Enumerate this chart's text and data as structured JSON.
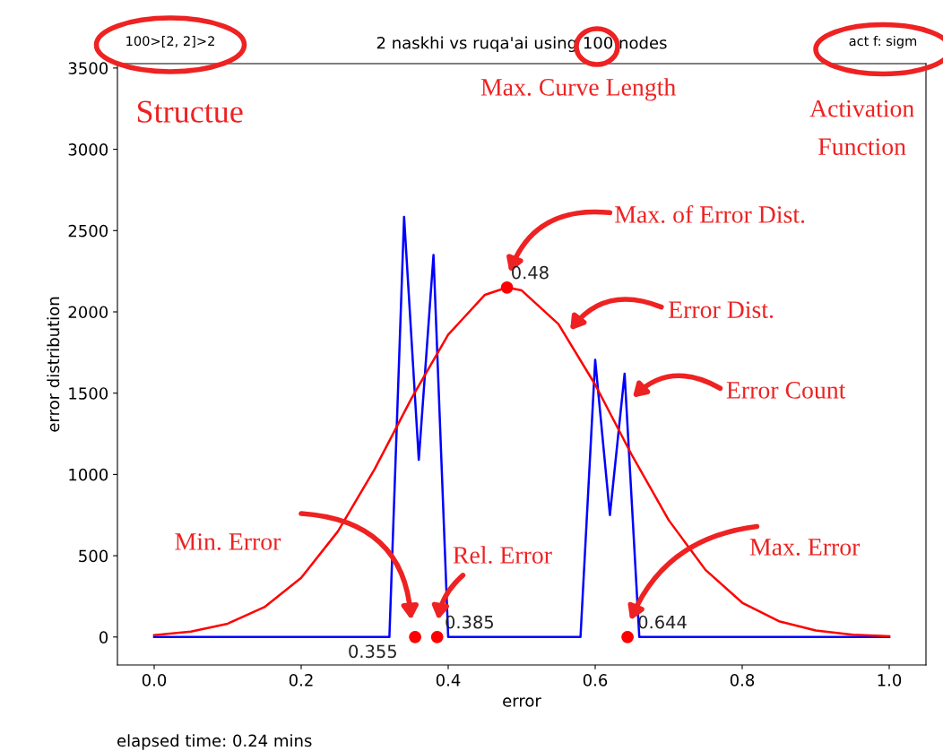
{
  "chart_data": {
    "type": "line",
    "title": "2 naskhi vs ruqa'ai using 100 nodes",
    "xlabel": "error",
    "ylabel": "error distribution",
    "xlim": [
      -0.05,
      1.05
    ],
    "ylim": [
      -172,
      3527
    ],
    "xticks": [
      {
        "value": 0,
        "label": "0.0"
      },
      0.2,
      0.4,
      0.6,
      0.8,
      {
        "value": 1,
        "label": "1.0"
      }
    ],
    "yticks": [
      0,
      500,
      1000,
      1500,
      2000,
      2500,
      3000,
      3500
    ],
    "grid": false,
    "series": [
      {
        "color": "#0000ff",
        "x": [
          0,
          0.32,
          0.34,
          0.36,
          0.38,
          0.4,
          0.58,
          0.6,
          0.62,
          0.64,
          0.66,
          1.0
        ],
        "values": [
          0,
          0,
          2585,
          1090,
          2350,
          0,
          0,
          1705,
          750,
          1620,
          0,
          0
        ]
      },
      {
        "color": "#ff0000",
        "x": [
          0,
          0.05,
          0.1,
          0.15,
          0.2,
          0.25,
          0.3,
          0.35,
          0.4,
          0.45,
          0.48,
          0.5,
          0.55,
          0.6,
          0.65,
          0.7,
          0.75,
          0.8,
          0.85,
          0.9,
          0.95,
          1.0
        ],
        "values": [
          12,
          33,
          82,
          184,
          364,
          650,
          1033,
          1467,
          1860,
          2105,
          2150,
          2132,
          1925,
          1552,
          1118,
          719,
          413,
          211,
          97,
          40,
          14,
          5
        ]
      },
      {
        "type": "scatter",
        "color": "#ff0000",
        "marker": "circle",
        "x": [
          0.48,
          0.355,
          0.385,
          0.644
        ],
        "values": [
          2150,
          0,
          0,
          0
        ]
      }
    ],
    "annotations": [
      "100>[2, 2]>2",
      "act f: sigm",
      "elapsed time: 0.24 mins",
      "Structue",
      "Max. Curve Length",
      "Activation\nFunction",
      "Max. of Error Dist.",
      "Error Dist.",
      "Error Count",
      "Min. Error",
      "Rel. Error",
      "Max. Error",
      {
        "text": "0.48",
        "x": 0.48,
        "y": 2150
      },
      {
        "text": "0.355",
        "x": 0.355,
        "y": 0
      },
      {
        "text": "0.385",
        "x": 0.385,
        "y": 0
      },
      {
        "text": "0.644",
        "x": 0.644,
        "y": 0
      }
    ]
  }
}
